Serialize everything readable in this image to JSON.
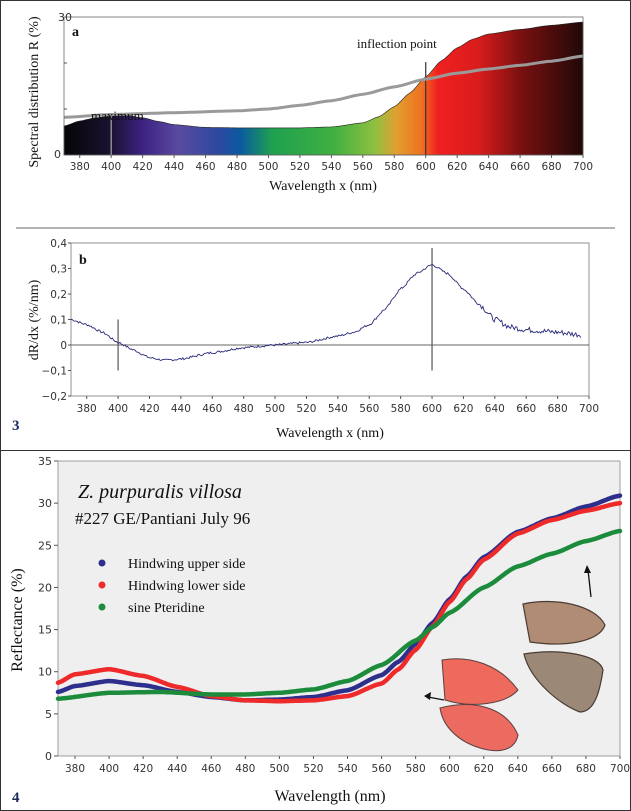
{
  "figure_labels": {
    "fig3": "3",
    "fig4": "4"
  },
  "chart_data": [
    {
      "id": "a",
      "type": "area",
      "panel_label": "a",
      "xlabel": "Wavelength x (nm)",
      "ylabel": "Spectral distribution R (%)",
      "xlim": [
        370,
        700
      ],
      "ylim": [
        0,
        30
      ],
      "x_ticks": [
        380,
        400,
        420,
        440,
        460,
        480,
        500,
        520,
        540,
        560,
        580,
        600,
        620,
        640,
        660,
        680,
        700
      ],
      "y_tick_labels": [
        "0",
        "30"
      ],
      "annotations": [
        {
          "text": "maximum",
          "x": 400
        },
        {
          "text": "inflection point",
          "x": 600
        }
      ],
      "fill": "visible-spectrum gradient",
      "series": [
        {
          "style": "spectrum-filled area",
          "x": [
            370,
            380,
            390,
            400,
            410,
            420,
            430,
            440,
            460,
            480,
            500,
            520,
            540,
            560,
            570,
            580,
            590,
            600,
            610,
            620,
            630,
            640,
            660,
            680,
            700
          ],
          "y": [
            6.3,
            7.4,
            8.1,
            8.5,
            8.6,
            8.1,
            7.3,
            6.6,
            6.0,
            5.9,
            5.9,
            5.9,
            6.1,
            7.0,
            8.3,
            10.5,
            13.5,
            17.0,
            20.5,
            23.3,
            25.2,
            26.3,
            27.3,
            28.2,
            28.9
          ]
        },
        {
          "style": "gray line",
          "color": "#9a9a9a",
          "x": [
            370,
            400,
            440,
            480,
            500,
            520,
            540,
            560,
            580,
            600,
            620,
            640,
            660,
            680,
            700
          ],
          "y": [
            8.2,
            8.8,
            9.2,
            9.6,
            10.0,
            10.8,
            11.8,
            13.2,
            14.8,
            16.5,
            17.8,
            18.7,
            19.5,
            20.4,
            21.5
          ]
        }
      ],
      "markers": [
        {
          "x": 400,
          "y_range": [
            0,
            8.8
          ]
        },
        {
          "x": 600,
          "y_range": [
            0,
            20.2
          ]
        }
      ]
    },
    {
      "id": "b",
      "type": "line",
      "panel_label": "b",
      "xlabel": "Wavelength x (nm)",
      "ylabel": "dR/dx (%/nm)",
      "xlim": [
        370,
        700
      ],
      "ylim": [
        -0.2,
        0.4
      ],
      "x_ticks": [
        380,
        400,
        420,
        440,
        460,
        480,
        500,
        520,
        540,
        560,
        580,
        600,
        620,
        640,
        660,
        680,
        700
      ],
      "y_ticks": [
        0.4,
        0.3,
        0.2,
        0.1,
        0,
        -0.1,
        -0.2
      ],
      "y_tick_labels": [
        "0,4",
        "0,3",
        "0,2",
        "0,1",
        "0",
        "−0,1",
        "−0,2"
      ],
      "color": "#2b2a7a",
      "series": [
        {
          "x": [
            370,
            380,
            390,
            400,
            410,
            420,
            430,
            440,
            460,
            480,
            500,
            520,
            540,
            550,
            560,
            570,
            580,
            590,
            600,
            610,
            620,
            630,
            640,
            650,
            660,
            680,
            695
          ],
          "y": [
            0.1,
            0.08,
            0.05,
            0.01,
            -0.02,
            -0.05,
            -0.06,
            -0.055,
            -0.03,
            -0.01,
            0.0,
            0.01,
            0.035,
            0.05,
            0.08,
            0.14,
            0.22,
            0.28,
            0.315,
            0.28,
            0.22,
            0.16,
            0.1,
            0.07,
            0.06,
            0.05,
            0.04
          ]
        }
      ],
      "markers": [
        {
          "x": 400,
          "y_range": [
            -0.1,
            0.1
          ]
        },
        {
          "x": 600,
          "y_range": [
            -0.1,
            0.38
          ]
        }
      ]
    },
    {
      "id": "c",
      "type": "scatter",
      "title": "Z. purpuralis villosa",
      "subtitle": "#227 GE/Pantiani July 96",
      "xlabel": "Wavelength (nm)",
      "ylabel": "Reflectance (%)",
      "xlim": [
        370,
        700
      ],
      "ylim": [
        0,
        35
      ],
      "x_ticks": [
        380,
        400,
        420,
        440,
        460,
        480,
        500,
        520,
        540,
        560,
        580,
        600,
        620,
        640,
        660,
        680,
        700
      ],
      "y_ticks": [
        0,
        5,
        10,
        15,
        20,
        25,
        30,
        35
      ],
      "legend_placement": "top-left",
      "series": [
        {
          "name": "Hindwing upper side",
          "color": "#2e2e8c",
          "x": [
            370,
            380,
            400,
            420,
            440,
            460,
            480,
            500,
            520,
            540,
            560,
            570,
            580,
            590,
            600,
            610,
            620,
            640,
            660,
            680,
            700
          ],
          "y": [
            7.6,
            8.3,
            8.9,
            8.4,
            7.6,
            7.0,
            6.6,
            6.7,
            7.0,
            7.8,
            9.6,
            11.2,
            13.3,
            15.8,
            18.6,
            21.3,
            23.6,
            26.6,
            28.2,
            29.6,
            30.9
          ]
        },
        {
          "name": "Hindwing lower side",
          "color": "#ee2a2a",
          "x": [
            370,
            380,
            400,
            420,
            440,
            460,
            480,
            500,
            520,
            540,
            560,
            570,
            580,
            590,
            600,
            610,
            620,
            640,
            660,
            680,
            700
          ],
          "y": [
            8.7,
            9.7,
            10.3,
            9.5,
            8.2,
            7.1,
            6.6,
            6.5,
            6.6,
            7.1,
            8.6,
            10.3,
            12.6,
            15.4,
            18.3,
            21.0,
            23.3,
            26.4,
            28.0,
            29.1,
            30.0
          ]
        },
        {
          "name": "sine Pteridine",
          "color": "#1c8c3c",
          "x": [
            370,
            400,
            430,
            460,
            480,
            500,
            520,
            540,
            560,
            580,
            590,
            600,
            620,
            640,
            660,
            680,
            700
          ],
          "y": [
            6.8,
            7.5,
            7.6,
            7.3,
            7.3,
            7.5,
            7.9,
            8.9,
            10.8,
            13.7,
            15.3,
            17.0,
            20.0,
            22.5,
            24.0,
            25.5,
            26.7
          ]
        }
      ]
    }
  ]
}
